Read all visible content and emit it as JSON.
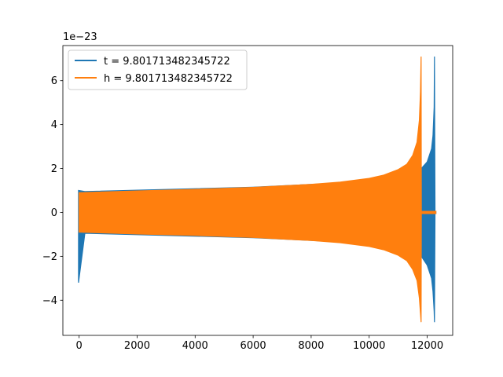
{
  "chart_data": {
    "type": "line",
    "title": "",
    "xlabel": "",
    "ylabel": "",
    "y_offset_label": "1e−23",
    "xlim": [
      -560,
      12880
    ],
    "ylim": [
      -5.6,
      7.6
    ],
    "x_ticks": [
      0,
      2000,
      4000,
      6000,
      8000,
      10000,
      12000
    ],
    "x_tick_labels": [
      "0",
      "2000",
      "4000",
      "6000",
      "8000",
      "10000",
      "12000"
    ],
    "y_ticks": [
      -4,
      -2,
      0,
      2,
      4,
      6
    ],
    "y_tick_labels": [
      "−4",
      "−2",
      "0",
      "2",
      "4",
      "6"
    ],
    "grid": false,
    "legend_position": "upper-left",
    "series": [
      {
        "name": "t = 9.801713482345722",
        "color": "#1f77b4",
        "upper": [
          [
            -20,
            1.0
          ],
          [
            200,
            0.95
          ],
          [
            6000,
            1.15
          ],
          [
            10000,
            1.4
          ],
          [
            11400,
            1.8
          ],
          [
            11800,
            2.0
          ],
          [
            12000,
            2.3
          ],
          [
            12150,
            2.9
          ],
          [
            12200,
            3.5
          ],
          [
            12240,
            4.8
          ],
          [
            12250,
            7.1
          ],
          [
            12270,
            0.05
          ],
          [
            12300,
            0.05
          ]
        ],
        "lower": [
          [
            -20,
            -3.2
          ],
          [
            200,
            -0.95
          ],
          [
            6000,
            -1.15
          ],
          [
            10000,
            -1.4
          ],
          [
            11400,
            -1.8
          ],
          [
            11800,
            -2.0
          ],
          [
            12000,
            -2.4
          ],
          [
            12150,
            -3.0
          ],
          [
            12200,
            -3.6
          ],
          [
            12240,
            -4.5
          ],
          [
            12250,
            -5.0
          ],
          [
            12270,
            -0.05
          ],
          [
            12300,
            -0.05
          ]
        ]
      },
      {
        "name": "h = 9.801713482345722",
        "color": "#ff7f0e",
        "upper": [
          [
            0,
            0.9
          ],
          [
            2000,
            0.98
          ],
          [
            4000,
            1.05
          ],
          [
            6000,
            1.14
          ],
          [
            8000,
            1.28
          ],
          [
            9000,
            1.38
          ],
          [
            10000,
            1.55
          ],
          [
            10500,
            1.7
          ],
          [
            11000,
            1.95
          ],
          [
            11300,
            2.2
          ],
          [
            11500,
            2.6
          ],
          [
            11650,
            3.2
          ],
          [
            11730,
            4.2
          ],
          [
            11770,
            5.5
          ],
          [
            11790,
            7.1
          ],
          [
            11800,
            0.05
          ],
          [
            12300,
            0.05
          ]
        ],
        "lower": [
          [
            0,
            -0.9
          ],
          [
            2000,
            -0.98
          ],
          [
            4000,
            -1.05
          ],
          [
            6000,
            -1.14
          ],
          [
            8000,
            -1.28
          ],
          [
            9000,
            -1.38
          ],
          [
            10000,
            -1.55
          ],
          [
            10500,
            -1.7
          ],
          [
            11000,
            -1.95
          ],
          [
            11300,
            -2.2
          ],
          [
            11500,
            -2.6
          ],
          [
            11650,
            -3.1
          ],
          [
            11730,
            -3.9
          ],
          [
            11770,
            -4.6
          ],
          [
            11790,
            -5.0
          ],
          [
            11800,
            -0.05
          ],
          [
            12300,
            -0.05
          ]
        ]
      }
    ]
  }
}
